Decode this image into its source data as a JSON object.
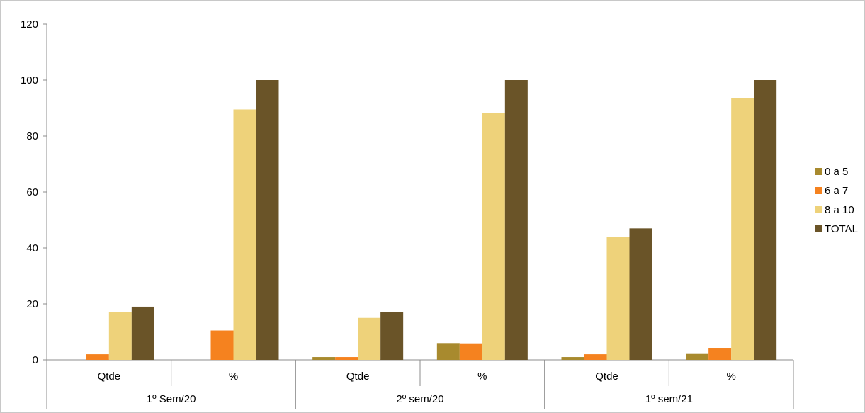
{
  "chart_data": {
    "type": "bar",
    "ylim": [
      0,
      120
    ],
    "yticks": [
      0,
      20,
      40,
      60,
      80,
      100,
      120
    ],
    "grid": false,
    "legend_position": "right",
    "groups": [
      {
        "label": "1º Sem/20",
        "categories": [
          "Qtde",
          "%"
        ]
      },
      {
        "label": "2º sem/20",
        "categories": [
          "Qtde",
          "%"
        ]
      },
      {
        "label": "1º sem/21",
        "categories": [
          "Qtde",
          "%"
        ]
      }
    ],
    "series": [
      {
        "name": "0 a 5",
        "color": "#a88a2e",
        "values": [
          0,
          0,
          1,
          6,
          1,
          2.1
        ]
      },
      {
        "name": "6 a 7",
        "color": "#f5821f",
        "values": [
          2,
          10.5,
          1,
          5.9,
          2,
          4.3
        ]
      },
      {
        "name": "8 a 10",
        "color": "#eed27a",
        "values": [
          17,
          89.5,
          15,
          88.2,
          44,
          93.6
        ]
      },
      {
        "name": "TOTAL",
        "color": "#6a5428",
        "values": [
          19,
          100,
          17,
          100,
          47,
          100
        ]
      }
    ]
  }
}
